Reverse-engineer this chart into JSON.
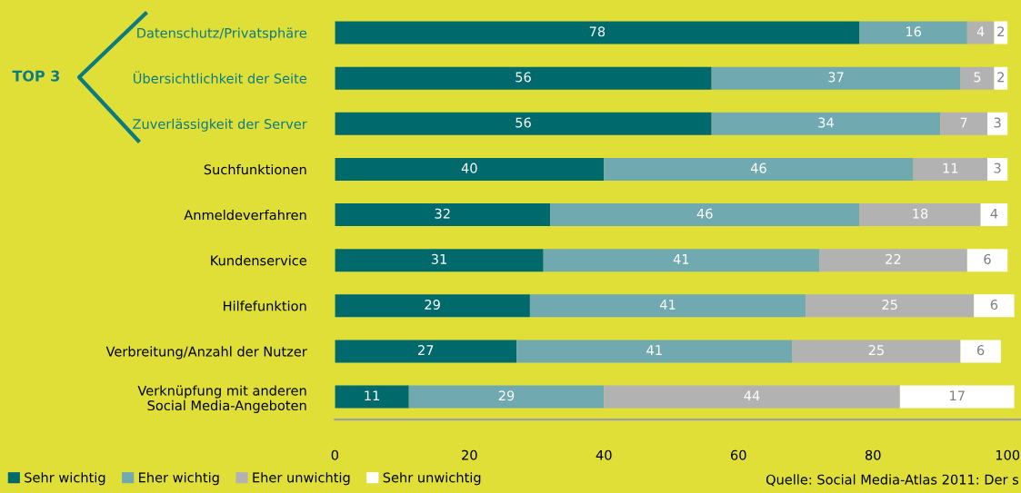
{
  "chart_data": {
    "type": "bar",
    "orientation": "horizontal",
    "stacked": true,
    "data_labels": true,
    "grid": false,
    "legend": "bottom left",
    "categories": [
      "Datenschutz/Privatsphäre",
      "Übersichtlichkeit der Seite",
      "Zuverlässigkeit der Server",
      "Suchfunktionen",
      "Anmeldeverfahren",
      "Kundenservice",
      "Hilfefunktion",
      "Verbreitung/Anzahl der Nutzer",
      "Verknüpfung mit anderen\nSocial Media-Angeboten"
    ],
    "series": [
      {
        "name": "Sehr wichtig",
        "color": "#00696b",
        "values": [
          78,
          56,
          56,
          40,
          32,
          31,
          29,
          27,
          11
        ]
      },
      {
        "name": "Eher wichtig",
        "color": "#70a9b0",
        "values": [
          16,
          37,
          34,
          46,
          46,
          41,
          41,
          41,
          29
        ]
      },
      {
        "name": "Eher unwichtig",
        "color": "#b2b2b2",
        "values": [
          4,
          5,
          7,
          11,
          18,
          22,
          25,
          25,
          44
        ]
      },
      {
        "name": "Sehr unwichtig",
        "color": "#ffffff",
        "values": [
          2,
          2,
          3,
          3,
          4,
          6,
          6,
          6,
          17
        ]
      }
    ],
    "xlim": [
      0,
      102
    ],
    "xticks": [
      0,
      20,
      40,
      60,
      80,
      100
    ],
    "annotations": [
      "TOP 3",
      "Quelle: Social Media-Atlas 2011: Der s"
    ]
  }
}
